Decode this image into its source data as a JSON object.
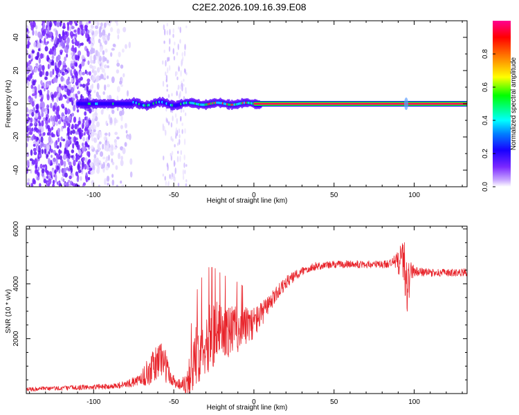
{
  "title": "C2E2.2026.109.16.39.E08",
  "chart_data": [
    {
      "type": "heatmap",
      "xlabel": "Height of straight line (km)",
      "ylabel": "Frequency (Hz)",
      "xlim": [
        -142,
        133
      ],
      "ylim": [
        -50,
        50
      ],
      "xticks": [
        -100,
        -50,
        0,
        50,
        100
      ],
      "yticks": [
        -40,
        -20,
        0,
        20,
        40
      ],
      "ridge": {
        "start_km": 0,
        "end_km": 133,
        "frequency_hz": 0
      },
      "noise_region_km": [
        -142,
        -75
      ],
      "secondary_noise_km": [
        -57,
        -42
      ],
      "colorbar": {
        "label": "Normalized spectral amplitude",
        "range": [
          0.0,
          1.0
        ],
        "ticks": [
          "0.0",
          "0.2",
          "0.4",
          "0.6",
          "0.8"
        ],
        "colors": [
          "#ffffff",
          "#5a00ff",
          "#0000ff",
          "#00ffff",
          "#00ff00",
          "#ffff00",
          "#ff8000",
          "#ff0000",
          "#ff00a0"
        ]
      }
    },
    {
      "type": "line",
      "xlabel": "Height of straight line (km)",
      "ylabel": "SNR (10 * v/v)",
      "xlim": [
        -142,
        133
      ],
      "ylim": [
        0,
        6100
      ],
      "xticks": [
        -100,
        -50,
        0,
        50,
        100
      ],
      "yticks": [
        2000,
        4000,
        6000
      ],
      "color": "#e8232a",
      "trend": {
        "x": [
          -142,
          -110,
          -90,
          -80,
          -72,
          -66,
          -62,
          -58,
          -55,
          -52,
          -48,
          -45,
          -42,
          -38,
          -35,
          -32,
          -28,
          -25,
          -20,
          -15,
          -10,
          -5,
          0,
          5,
          10,
          15,
          20,
          25,
          30,
          35,
          40,
          50,
          60,
          70,
          80,
          85,
          88,
          90,
          92,
          94,
          95,
          96,
          98,
          100,
          110,
          120,
          133
        ],
        "y": [
          150,
          220,
          260,
          330,
          480,
          780,
          1000,
          1350,
          1000,
          550,
          380,
          320,
          480,
          950,
          1500,
          1900,
          2000,
          2200,
          2250,
          2300,
          2350,
          2450,
          2600,
          2900,
          3300,
          3700,
          4050,
          4250,
          4450,
          4600,
          4650,
          4700,
          4720,
          4700,
          4700,
          4750,
          4800,
          4850,
          4900,
          4700,
          4000,
          3800,
          4500,
          4450,
          4400,
          4400,
          4420
        ],
        "amplitude": [
          80,
          90,
          100,
          130,
          200,
          500,
          650,
          750,
          600,
          300,
          200,
          200,
          500,
          1000,
          1200,
          1200,
          1300,
          1200,
          1050,
          950,
          850,
          700,
          600,
          450,
          350,
          280,
          230,
          200,
          180,
          160,
          150,
          140,
          140,
          140,
          150,
          160,
          250,
          500,
          800,
          900,
          1100,
          1000,
          400,
          180,
          140,
          140,
          140
        ]
      }
    }
  ]
}
